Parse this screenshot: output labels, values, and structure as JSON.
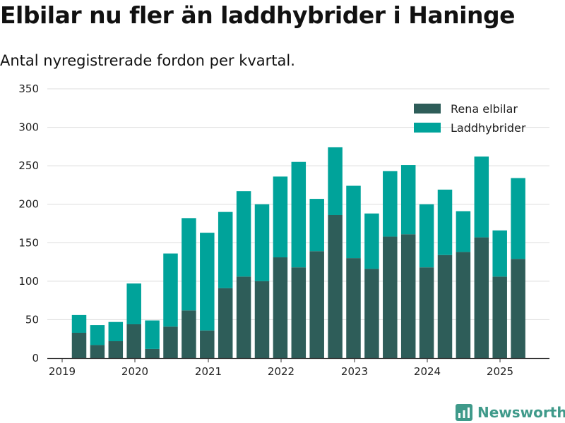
{
  "title": "Elbilar nu fler än laddhybrider i Haninge",
  "subtitle": "Antal nyregistrerade fordon per kvartal.",
  "brand": {
    "name": "Newsworthy",
    "icon": "newsworthy-logo-icon",
    "color": "#3f9a8a"
  },
  "colors": {
    "electric": "#2e5d59",
    "hybrid": "#00a39a",
    "grid": "#dddddd",
    "axis": "#333333"
  },
  "chart_data": {
    "type": "bar",
    "stacked": true,
    "title": "Elbilar nu fler än laddhybrider i Haninge",
    "subtitle": "Antal nyregistrerade fordon per kvartal.",
    "xlabel": "",
    "ylabel": "",
    "ylim": [
      0,
      350
    ],
    "yticks": [
      0,
      50,
      100,
      150,
      200,
      250,
      300,
      350
    ],
    "grid": true,
    "legend_position": "top-right",
    "x_ticks": [
      "2019",
      "2020",
      "2021",
      "2022",
      "2023",
      "2024",
      "2025"
    ],
    "categories": [
      "2019 Q2",
      "2019 Q3",
      "2019 Q4",
      "2020 Q1",
      "2020 Q2",
      "2020 Q3",
      "2020 Q4",
      "2021 Q1",
      "2021 Q2",
      "2021 Q3",
      "2021 Q4",
      "2022 Q1",
      "2022 Q2",
      "2022 Q3",
      "2022 Q4",
      "2023 Q1",
      "2023 Q2",
      "2023 Q3",
      "2023 Q4",
      "2024 Q1",
      "2024 Q2",
      "2024 Q3",
      "2024 Q4",
      "2025 Q1",
      "2025 Q2"
    ],
    "series": [
      {
        "name": "Rena elbilar",
        "color": "#2e5d59",
        "values": [
          33,
          17,
          22,
          44,
          12,
          41,
          62,
          36,
          91,
          106,
          100,
          131,
          118,
          139,
          186,
          130,
          116,
          158,
          161,
          118,
          134,
          138,
          157,
          106,
          129
        ]
      },
      {
        "name": "Laddhybrider",
        "color": "#00a39a",
        "values": [
          23,
          26,
          25,
          53,
          37,
          95,
          120,
          127,
          99,
          111,
          100,
          105,
          137,
          68,
          88,
          94,
          72,
          85,
          90,
          82,
          85,
          53,
          105,
          60,
          105
        ]
      }
    ]
  }
}
